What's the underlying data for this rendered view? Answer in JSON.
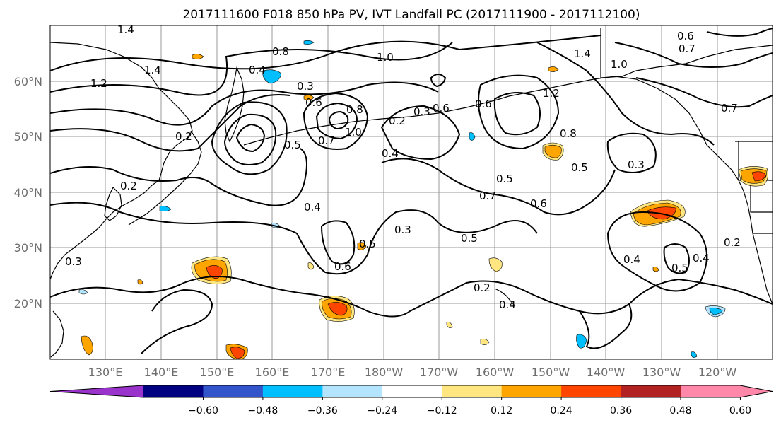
{
  "title": "2017111600 F018 850 hPa PV, IVT Landfall PC (2017111900 - 2017112100)",
  "lat_labels": [
    "60°N",
    "50°N",
    "40°N",
    "30°N",
    "20°N"
  ],
  "lon_labels": [
    "130°E",
    "140°E",
    "150°E",
    "160°E",
    "170°E",
    "180°W",
    "170°W",
    "160°W",
    "150°W",
    "140°W",
    "130°W",
    "120°W"
  ],
  "colorbar": {
    "colors": [
      "#9933cc",
      "#000080",
      "#3355cc",
      "#00bfff",
      "#b3e5ff",
      "#ffffff",
      "#ffe680",
      "#ffa500",
      "#ff4500",
      "#b22222",
      "#ff88aa"
    ],
    "tick_labels": [
      "−0.60",
      "−0.48",
      "−0.36",
      "−0.24",
      "−0.12",
      "0.12",
      "0.24",
      "0.36",
      "0.48",
      "0.60"
    ]
  },
  "contour_labels": [
    "1.4",
    "1.4",
    "1.2",
    "1.0",
    "0.8",
    "0.4",
    "0.3",
    "0.6",
    "1.0",
    "0.8",
    "0.7",
    "0.5",
    "0.2",
    "0.4",
    "0.3",
    "0.6",
    "1.4",
    "1.2",
    "0.8",
    "0.5",
    "0.3",
    "0.5",
    "0.7",
    "0.6",
    "0.4",
    "0.5",
    "0.3",
    "0.5",
    "0.6",
    "0.2",
    "0.4",
    "0.2",
    "0.4",
    "0.5",
    "0.4",
    "0.3",
    "0.6",
    "0.7",
    "0.7",
    "0.6",
    "1.0",
    "0.2",
    "0.2"
  ],
  "chart_data": {
    "type": "map",
    "projection": "PlateCarree",
    "lon_range": [
      "120°E",
      "115°W"
    ],
    "lat_range": [
      "10°N",
      "70°N"
    ],
    "gridlines": true,
    "filled_variable": "IVT Landfall PC",
    "contour_variable": "850 hPa PV",
    "colorbar_levels": [
      -0.6,
      -0.48,
      -0.36,
      -0.24,
      -0.12,
      0.12,
      0.24,
      0.36,
      0.48,
      0.6
    ],
    "colorbar_extend": "both"
  }
}
